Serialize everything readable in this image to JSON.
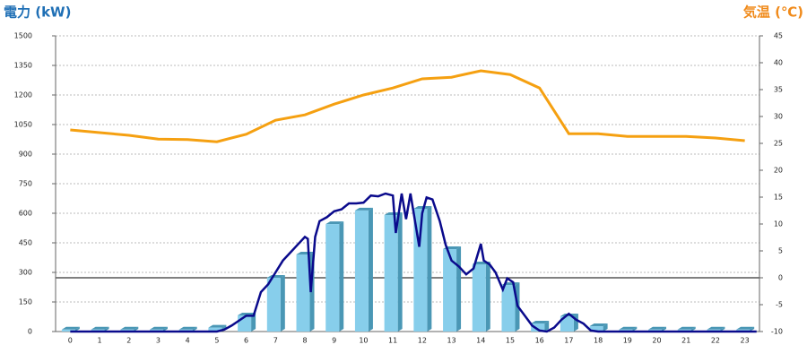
{
  "chart_data": {
    "type": "bar_line",
    "ylabel": "電力 (kW)",
    "y2label": "気温 (℃)",
    "categories": [
      "0",
      "1",
      "2",
      "3",
      "4",
      "5",
      "6",
      "7",
      "8",
      "9",
      "10",
      "11",
      "12",
      "13",
      "14",
      "15",
      "16",
      "17",
      "18",
      "19",
      "20",
      "21",
      "22",
      "23"
    ],
    "ylim": [
      0,
      1500
    ],
    "yticks": [
      0,
      150,
      300,
      450,
      600,
      750,
      900,
      1050,
      1200,
      1350,
      1500
    ],
    "y2lim": [
      -10,
      45
    ],
    "y2ticks": [
      -10,
      -5,
      0,
      5,
      10,
      15,
      20,
      25,
      30,
      35,
      40,
      45
    ],
    "grid": true,
    "y2_zero_line": true,
    "bars": {
      "color": "#87ceeb",
      "side_color": "#4a97b5",
      "values": [
        10,
        10,
        10,
        10,
        10,
        20,
        82,
        273,
        391,
        545,
        614,
        591,
        623,
        418,
        341,
        236,
        41,
        77,
        27,
        10,
        10,
        10,
        10,
        10
      ]
    },
    "temperature": {
      "color": "#f5a011",
      "axis": "y2",
      "values": [
        27.5,
        27,
        26.5,
        25.8,
        25.7,
        25.3,
        26.7,
        29.3,
        30.3,
        32.3,
        34,
        35.3,
        37,
        37.3,
        38.5,
        37.8,
        35.3,
        26.8,
        26.8,
        26.3,
        26.3,
        26.3,
        26,
        25.5
      ]
    },
    "power": {
      "color": "#0a0a8c",
      "x": [
        0,
        5,
        5.25,
        5.5,
        5.75,
        6,
        6.25,
        6.5,
        6.75,
        7,
        7.25,
        7.5,
        7.75,
        8,
        8.1,
        8.2,
        8.35,
        8.5,
        8.75,
        9,
        9.25,
        9.5,
        9.75,
        10,
        10.25,
        10.5,
        10.75,
        11,
        11.1,
        11.3,
        11.45,
        11.6,
        11.9,
        12,
        12.15,
        12.35,
        12.6,
        12.8,
        13,
        13.25,
        13.5,
        13.75,
        14,
        14.1,
        14.3,
        14.5,
        14.75,
        14.9,
        15.1,
        15.25,
        15.5,
        15.75,
        16,
        16.25,
        16.5,
        16.75,
        17,
        17.25,
        17.5,
        17.75,
        18,
        23.4
      ],
      "values": [
        0,
        0,
        10,
        30,
        55,
        80,
        80,
        200,
        240,
        300,
        360,
        400,
        440,
        480,
        470,
        200,
        480,
        560,
        580,
        610,
        620,
        650,
        650,
        654,
        690,
        686,
        700,
        690,
        500,
        700,
        570,
        700,
        430,
        600,
        680,
        670,
        560,
        440,
        360,
        330,
        290,
        320,
        445,
        360,
        340,
        300,
        213,
        270,
        250,
        130,
        80,
        30,
        5,
        0,
        20,
        60,
        90,
        60,
        40,
        5,
        0,
        0
      ]
    }
  }
}
